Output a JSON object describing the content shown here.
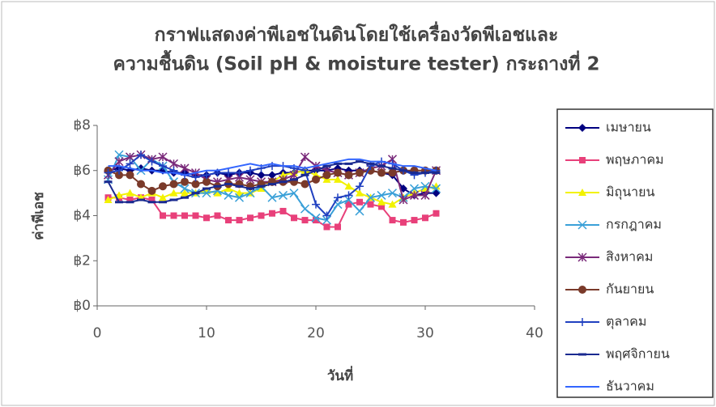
{
  "chart_data": {
    "type": "line",
    "title": "กราฟแสดงค่าพีเอชในดินโดยใช้เครื่องวัดพีเอชและ",
    "subtitle": "ความชื้นดิน (Soil pH & moisture tester) กระถางที่ 2",
    "x_label": "วันที่",
    "y_label": "ค่าพีเอช",
    "x": [
      1,
      2,
      3,
      4,
      5,
      6,
      7,
      8,
      9,
      10,
      11,
      12,
      13,
      14,
      15,
      16,
      17,
      18,
      19,
      20,
      21,
      22,
      23,
      24,
      25,
      26,
      27,
      28,
      29,
      30,
      31
    ],
    "xlim": [
      0,
      40
    ],
    "xticks": [
      0,
      10,
      20,
      30,
      40
    ],
    "ylim": [
      0,
      8
    ],
    "yticks": [
      {
        "value": 0,
        "label": "฿0"
      },
      {
        "value": 2,
        "label": "฿2"
      },
      {
        "value": 4,
        "label": "฿4"
      },
      {
        "value": 6,
        "label": "฿6"
      },
      {
        "value": 8,
        "label": "฿8"
      }
    ],
    "legend": "right",
    "series": [
      {
        "name": "เมษายน",
        "color": "#000080",
        "marker": "diamond",
        "values": [
          6.0,
          6.1,
          6.0,
          6.1,
          6.0,
          6.0,
          5.9,
          5.9,
          5.8,
          5.8,
          5.9,
          5.8,
          5.9,
          5.9,
          5.8,
          5.8,
          5.9,
          5.9,
          6.0,
          6.0,
          6.0,
          6.1,
          6.0,
          6.0,
          6.0,
          5.9,
          5.8,
          5.2,
          4.9,
          5.0,
          5.0
        ]
      },
      {
        "name": "พฤษภาคม",
        "color": "#e8407a",
        "marker": "square",
        "values": [
          4.8,
          4.8,
          4.7,
          4.8,
          4.7,
          4.0,
          4.0,
          4.0,
          4.0,
          3.9,
          4.0,
          3.8,
          3.8,
          3.9,
          4.0,
          4.1,
          4.2,
          3.9,
          3.8,
          3.8,
          3.5,
          3.5,
          4.5,
          4.6,
          4.5,
          4.4,
          3.8,
          3.7,
          3.8,
          3.9,
          4.1
        ]
      },
      {
        "name": "มิถุนายน",
        "color": "#f2f200",
        "marker": "triangle",
        "values": [
          4.7,
          4.9,
          5.0,
          4.8,
          5.0,
          4.8,
          5.0,
          5.0,
          5.0,
          5.1,
          5.0,
          5.2,
          5.0,
          5.0,
          5.2,
          5.5,
          5.8,
          5.9,
          6.0,
          5.8,
          5.6,
          5.6,
          5.3,
          5.0,
          4.8,
          4.6,
          4.5,
          4.8,
          5.0,
          5.2,
          5.3
        ]
      },
      {
        "name": "กรกฎาคม",
        "color": "#3aa0d8",
        "marker": "x",
        "values": [
          5.6,
          6.7,
          6.6,
          6.0,
          6.5,
          6.2,
          5.5,
          5.2,
          5.0,
          5.0,
          5.1,
          4.9,
          4.8,
          5.0,
          5.3,
          4.8,
          4.9,
          5.0,
          4.3,
          3.9,
          3.8,
          4.5,
          4.7,
          4.2,
          4.8,
          4.9,
          5.0,
          4.8,
          5.2,
          5.3,
          5.2
        ]
      },
      {
        "name": "สิงหาคม",
        "color": "#7a2a7a",
        "marker": "asterisk",
        "values": [
          5.8,
          6.4,
          6.6,
          6.7,
          6.5,
          6.6,
          6.3,
          6.1,
          5.9,
          5.6,
          5.5,
          5.6,
          5.7,
          5.6,
          5.5,
          5.5,
          5.6,
          5.8,
          6.6,
          6.2,
          6.0,
          5.9,
          5.8,
          5.9,
          6.1,
          6.2,
          6.5,
          4.7,
          4.9,
          4.9,
          6.0
        ]
      },
      {
        "name": "กันยายน",
        "color": "#7a3a2a",
        "marker": "circle",
        "values": [
          6.0,
          5.8,
          5.8,
          5.4,
          5.1,
          5.3,
          5.4,
          5.5,
          5.4,
          5.5,
          5.3,
          5.4,
          5.4,
          5.3,
          5.4,
          5.5,
          5.5,
          5.5,
          5.4,
          5.6,
          5.8,
          5.9,
          5.8,
          5.9,
          6.0,
          5.9,
          5.9,
          6.0,
          6.0,
          6.0,
          6.0
        ]
      },
      {
        "name": "ตุลาคม",
        "color": "#2040c0",
        "marker": "plus",
        "values": [
          5.9,
          6.0,
          6.3,
          6.7,
          6.4,
          6.2,
          6.0,
          5.8,
          5.7,
          5.8,
          5.9,
          5.9,
          5.9,
          6.0,
          6.1,
          6.2,
          6.2,
          6.1,
          6.0,
          4.5,
          4.0,
          4.8,
          4.9,
          5.3,
          6.2,
          6.4,
          6.3,
          6.0,
          5.8,
          5.9,
          6.0
        ]
      },
      {
        "name": "พฤศจิกายน",
        "color": "#1a2a90",
        "marker": "dash",
        "values": [
          5.5,
          4.6,
          4.6,
          4.7,
          4.6,
          4.6,
          4.7,
          4.8,
          5.0,
          5.2,
          5.3,
          5.4,
          5.3,
          5.2,
          5.3,
          5.4,
          5.5,
          5.6,
          5.8,
          6.0,
          6.2,
          6.3,
          6.3,
          6.4,
          6.3,
          6.2,
          6.1,
          6.0,
          5.9,
          5.9,
          5.9
        ]
      },
      {
        "name": "ธันวาคม",
        "color": "#3366ff",
        "marker": "none",
        "values": [
          6.2,
          6.2,
          6.1,
          6.0,
          6.0,
          5.9,
          5.9,
          5.8,
          5.9,
          6.0,
          6.0,
          6.1,
          6.2,
          6.3,
          6.2,
          6.3,
          6.2,
          6.2,
          6.1,
          6.2,
          6.3,
          6.4,
          6.5,
          6.5,
          6.4,
          6.4,
          6.3,
          6.2,
          6.2,
          6.1,
          6.0
        ]
      }
    ]
  }
}
